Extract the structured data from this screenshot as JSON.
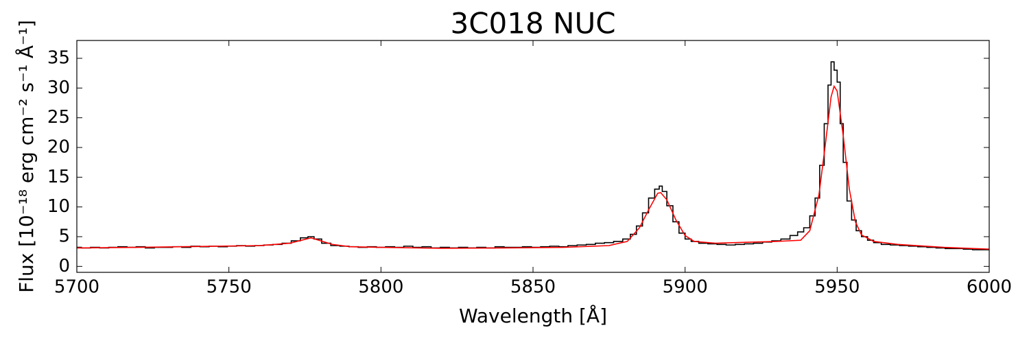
{
  "chart_data": {
    "type": "line",
    "title": "3C018 NUC",
    "xlabel": "Wavelength [Å]",
    "ylabel": "Flux [10⁻¹⁸ erg cm⁻² s⁻¹ Å⁻¹]",
    "xlim": [
      5700,
      6000
    ],
    "xticks": [
      5700,
      5750,
      5800,
      5850,
      5900,
      5950,
      6000
    ],
    "ylim": [
      -1,
      38
    ],
    "yticks": [
      0,
      5,
      10,
      15,
      20,
      25,
      30,
      35
    ],
    "grid": false,
    "series": [
      {
        "color": "#000000",
        "drawstyle": "steps-mid",
        "x": [
          5700,
          5703,
          5706,
          5709,
          5712,
          5715,
          5718,
          5721,
          5724,
          5727,
          5730,
          5733,
          5736,
          5739,
          5742,
          5745,
          5748,
          5751,
          5754,
          5757,
          5760,
          5763,
          5766,
          5769,
          5772,
          5775,
          5777,
          5779,
          5782,
          5785,
          5788,
          5791,
          5794,
          5797,
          5800,
          5803,
          5806,
          5809,
          5812,
          5815,
          5818,
          5821,
          5824,
          5827,
          5830,
          5833,
          5836,
          5839,
          5842,
          5845,
          5848,
          5851,
          5854,
          5857,
          5860,
          5863,
          5866,
          5869,
          5872,
          5875,
          5878,
          5881,
          5883,
          5885,
          5887,
          5889,
          5891,
          5892,
          5893,
          5895,
          5897,
          5899,
          5901,
          5903,
          5906,
          5909,
          5912,
          5915,
          5918,
          5921,
          5924,
          5927,
          5930,
          5933,
          5936,
          5938,
          5940,
          5942,
          5943.5,
          5945,
          5946.5,
          5947.5,
          5948.5,
          5949.5,
          5950.5,
          5951.5,
          5952.5,
          5954,
          5955.5,
          5957,
          5959,
          5961,
          5963,
          5966,
          5969,
          5972,
          5975,
          5978,
          5981,
          5984,
          5987,
          5990,
          5993,
          5996,
          6000
        ],
        "values": [
          3.2,
          3.1,
          3.2,
          3.1,
          3.2,
          3.3,
          3.2,
          3.3,
          3.1,
          3.2,
          3.2,
          3.3,
          3.2,
          3.4,
          3.3,
          3.4,
          3.3,
          3.4,
          3.5,
          3.4,
          3.5,
          3.6,
          3.7,
          3.9,
          4.3,
          4.8,
          5.0,
          4.6,
          3.9,
          3.5,
          3.4,
          3.3,
          3.2,
          3.3,
          3.2,
          3.3,
          3.2,
          3.4,
          3.2,
          3.3,
          3.1,
          3.2,
          3.1,
          3.2,
          3.1,
          3.2,
          3.1,
          3.3,
          3.2,
          3.2,
          3.3,
          3.2,
          3.3,
          3.4,
          3.3,
          3.5,
          3.6,
          3.7,
          3.9,
          4.0,
          4.2,
          4.6,
          5.4,
          6.8,
          9.0,
          11.5,
          13.0,
          13.5,
          12.6,
          10.2,
          7.5,
          5.6,
          4.6,
          4.2,
          3.9,
          3.8,
          3.7,
          3.6,
          3.7,
          3.8,
          3.9,
          4.1,
          4.3,
          4.6,
          5.2,
          5.8,
          6.5,
          8.5,
          11.5,
          17.0,
          24.0,
          30.5,
          34.4,
          33.0,
          31.0,
          24.0,
          17.5,
          11.0,
          7.8,
          6.0,
          5.0,
          4.4,
          4.0,
          3.7,
          3.6,
          3.5,
          3.4,
          3.3,
          3.2,
          3.1,
          3.0,
          3.0,
          2.9,
          2.8,
          2.8
        ]
      },
      {
        "color": "#ff0000",
        "drawstyle": "default",
        "x": [
          5700,
          5720,
          5740,
          5760,
          5770,
          5777,
          5784,
          5790,
          5800,
          5820,
          5840,
          5860,
          5875,
          5881,
          5885,
          5888,
          5891,
          5892,
          5894,
          5897,
          5900,
          5903,
          5910,
          5920,
          5930,
          5938,
          5941,
          5944,
          5946,
          5948,
          5949,
          5950,
          5952,
          5954,
          5956,
          5958,
          5962,
          5970,
          5985,
          6000
        ],
        "values": [
          3.1,
          3.2,
          3.35,
          3.5,
          3.9,
          4.8,
          3.7,
          3.3,
          3.2,
          3.05,
          3.1,
          3.2,
          3.5,
          4.2,
          6.5,
          9.5,
          12.3,
          12.4,
          11.2,
          7.8,
          5.2,
          4.2,
          3.9,
          4.05,
          4.2,
          4.4,
          6.0,
          12.0,
          20.0,
          28.5,
          30.3,
          29.5,
          22.0,
          13.0,
          7.5,
          5.3,
          4.2,
          3.7,
          3.2,
          2.9
        ]
      }
    ]
  }
}
